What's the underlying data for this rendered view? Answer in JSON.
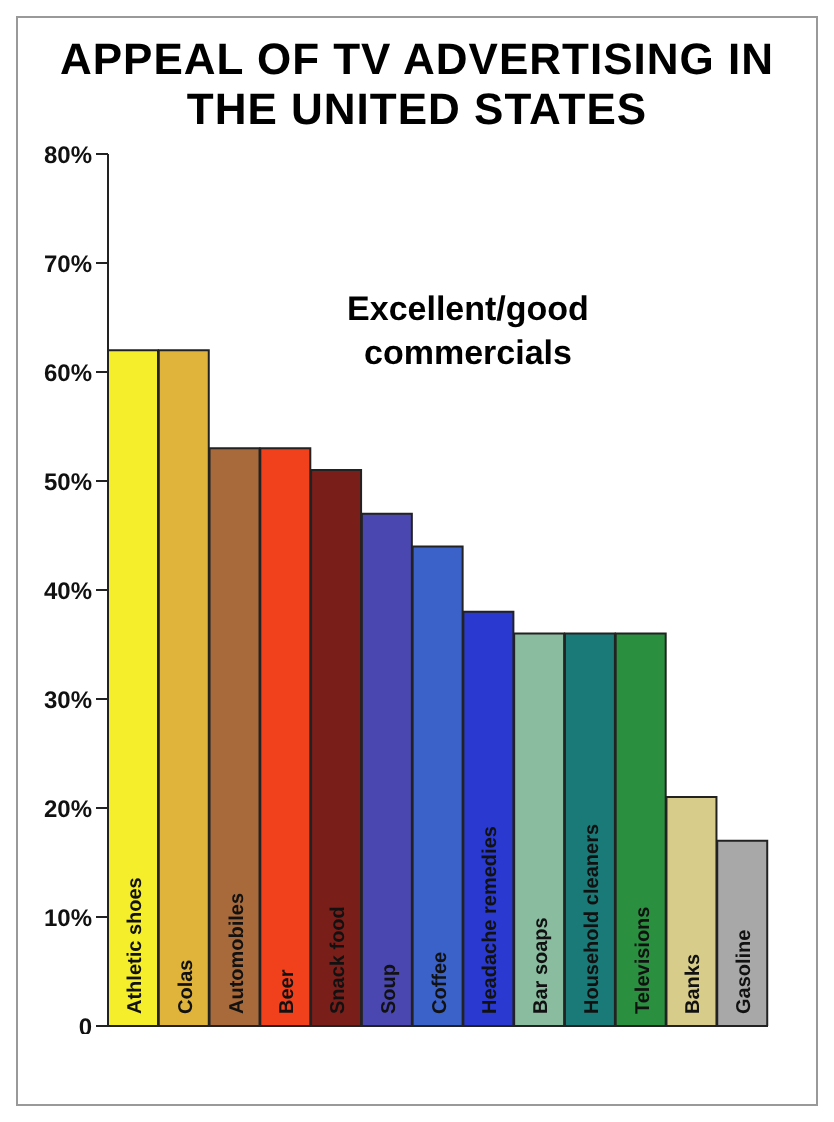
{
  "chart_data": {
    "type": "bar",
    "title": "APPEAL OF TV ADVERTISING IN THE UNITED STATES",
    "categories": [
      "Athletic shoes",
      "Colas",
      "Automobiles",
      "Beer",
      "Snack food",
      "Soup",
      "Coffee",
      "Headache remedies",
      "Bar soaps",
      "Household cleaners",
      "Televisions",
      "Banks",
      "Gasoline"
    ],
    "values": [
      62,
      62,
      53,
      53,
      51,
      47,
      44,
      38,
      36,
      36,
      36,
      21,
      17
    ],
    "colors": [
      "#f5ee2a",
      "#e0b43a",
      "#a86a3a",
      "#f0401c",
      "#7a1e1a",
      "#4a48b0",
      "#3a62c8",
      "#2a3ad0",
      "#8abca0",
      "#1a7a78",
      "#2a9040",
      "#d8cc8a",
      "#a8a8a8"
    ],
    "ylim": [
      0,
      80
    ],
    "yticks": [
      0,
      {
        "value": 10,
        "label": "10%"
      },
      {
        "value": 20,
        "label": "20%"
      },
      {
        "value": 30,
        "label": "30%"
      },
      {
        "value": 40,
        "label": "40%"
      },
      {
        "value": 50,
        "label": "50%"
      },
      {
        "value": 60,
        "label": "60%"
      },
      {
        "value": 70,
        "label": "70%"
      },
      {
        "value": 80,
        "label": "80%"
      }
    ],
    "annotations": [
      "Excellent/good commercials"
    ],
    "grid": false
  }
}
